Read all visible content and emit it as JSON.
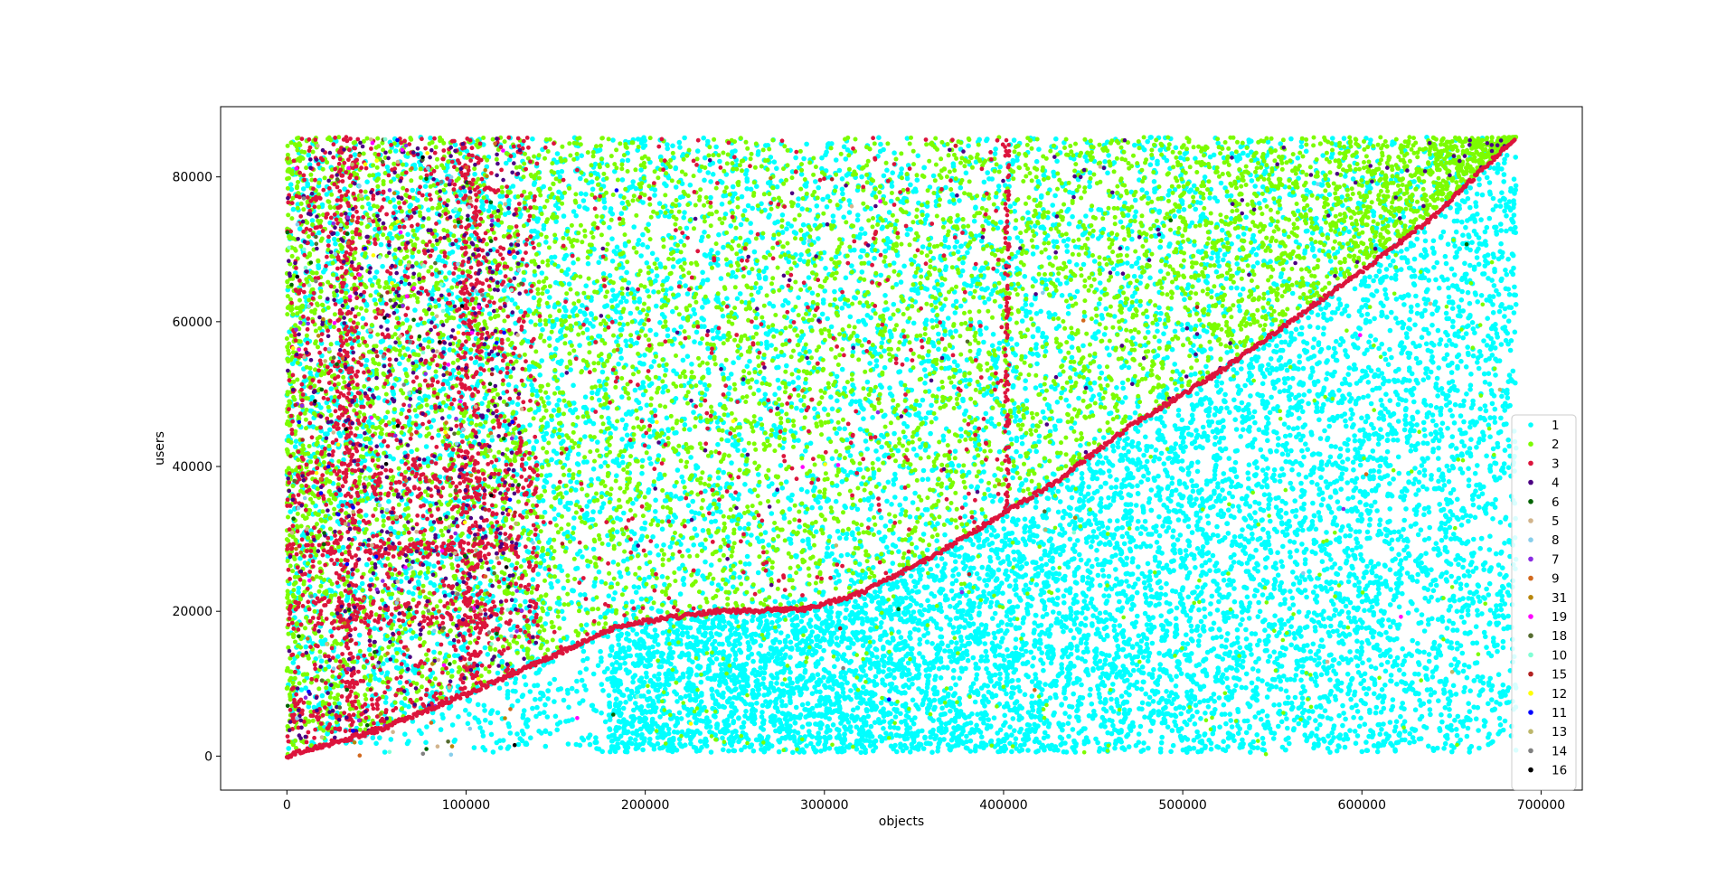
{
  "chart_data": {
    "type": "scatter",
    "title": "",
    "xlabel": "objects",
    "ylabel": "users",
    "xlim": [
      -37000,
      723000
    ],
    "ylim": [
      -4700,
      89700
    ],
    "xticks": [
      0,
      100000,
      200000,
      300000,
      400000,
      500000,
      600000,
      700000
    ],
    "yticks": [
      0,
      20000,
      40000,
      60000,
      80000
    ],
    "grid": false,
    "legend_position": "lower-right",
    "series": [
      {
        "name": "1",
        "color": "#00ffff"
      },
      {
        "name": "2",
        "color": "#7cfc00"
      },
      {
        "name": "3",
        "color": "#dc143c"
      },
      {
        "name": "4",
        "color": "#4b0082"
      },
      {
        "name": "6",
        "color": "#006400"
      },
      {
        "name": "5",
        "color": "#d2b48c"
      },
      {
        "name": "8",
        "color": "#87ceeb"
      },
      {
        "name": "7",
        "color": "#8a2be2"
      },
      {
        "name": "9",
        "color": "#d2691e"
      },
      {
        "name": "31",
        "color": "#b8860b"
      },
      {
        "name": "19",
        "color": "#ff00ff"
      },
      {
        "name": "18",
        "color": "#556b2f"
      },
      {
        "name": "10",
        "color": "#7fffd4"
      },
      {
        "name": "15",
        "color": "#b22222"
      },
      {
        "name": "12",
        "color": "#ffff00"
      },
      {
        "name": "11",
        "color": "#0000ff"
      },
      {
        "name": "13",
        "color": "#bdb76b"
      },
      {
        "name": "14",
        "color": "#808080"
      },
      {
        "name": "16",
        "color": "#000000"
      }
    ],
    "diagonal_trend": [
      [
        0,
        0
      ],
      [
        50000,
        3500
      ],
      [
        100000,
        8500
      ],
      [
        150000,
        14000
      ],
      [
        185000,
        18000
      ],
      [
        210000,
        19000
      ],
      [
        240000,
        20000
      ],
      [
        290000,
        20300
      ],
      [
        320000,
        22500
      ],
      [
        360000,
        27500
      ],
      [
        400000,
        33500
      ],
      [
        430000,
        38000
      ],
      [
        470000,
        45500
      ],
      [
        520000,
        53000
      ],
      [
        560000,
        60000
      ],
      [
        600000,
        67000
      ],
      [
        640000,
        74500
      ],
      [
        686000,
        85500
      ]
    ]
  }
}
